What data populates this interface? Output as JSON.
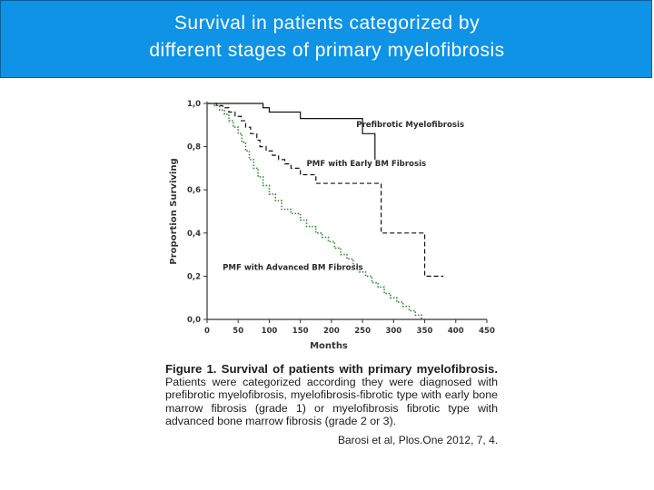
{
  "slide": {
    "title_line1": "Survival in patients categorized by",
    "title_line2": "different stages of primary myelofibrosis",
    "title_color": "#0e93e6"
  },
  "caption": {
    "lead": "Figure 1. Survival of patients with primary myelofibrosis.",
    "body": "Patients were categorized according they were diagnosed with prefibrotic myelofibrosis, myelofibrosis-fibrotic type with early bone marrow fibrosis (grade 1) or myelofibrosis fibrotic type with advanced bone marrow fibrosis (grade 2 or 3)."
  },
  "citation": "Barosi et al, Plos.One 2012, 7, 4.",
  "chart_data": {
    "type": "line",
    "step": true,
    "xlabel": "Months",
    "ylabel": "Proportion Surviving",
    "xlim": [
      0,
      450
    ],
    "ylim": [
      0,
      1
    ],
    "xticks": [
      "0",
      "50",
      "100",
      "150",
      "200",
      "250",
      "300",
      "350",
      "400",
      "450"
    ],
    "yticks": [
      "0,0",
      "0,2",
      "0,4",
      "0,6",
      "0,8",
      "1,0"
    ],
    "grid": false,
    "series": [
      {
        "name": "Prefibrotic Myelofibrosis",
        "style": "solid",
        "color": "#111111",
        "x": [
          0,
          60,
          90,
          100,
          140,
          150,
          250,
          270,
          270
        ],
        "y": [
          1.0,
          1.0,
          0.98,
          0.96,
          0.96,
          0.93,
          0.86,
          0.86,
          0.74
        ]
      },
      {
        "name": "PMF with Early BM Fibrosis",
        "style": "dashed",
        "color": "#111111",
        "x": [
          0,
          15,
          25,
          35,
          45,
          55,
          62,
          70,
          80,
          85,
          95,
          105,
          115,
          125,
          135,
          150,
          175,
          200,
          260,
          280,
          280,
          300,
          330,
          350,
          350,
          380
        ],
        "y": [
          1.0,
          0.99,
          0.98,
          0.96,
          0.94,
          0.92,
          0.89,
          0.86,
          0.83,
          0.8,
          0.78,
          0.76,
          0.74,
          0.72,
          0.7,
          0.67,
          0.63,
          0.63,
          0.63,
          0.63,
          0.4,
          0.4,
          0.4,
          0.4,
          0.2,
          0.2
        ]
      },
      {
        "name": "PMF with Advanced BM Fibrosis",
        "style": "dotted",
        "color": "#2e8b2e",
        "x": [
          0,
          10,
          20,
          28,
          35,
          42,
          50,
          56,
          62,
          68,
          75,
          82,
          90,
          100,
          110,
          120,
          135,
          150,
          160,
          175,
          185,
          195,
          205,
          215,
          225,
          235,
          245,
          255,
          265,
          275,
          285,
          295,
          305,
          315,
          325,
          335,
          345
        ],
        "y": [
          1.0,
          0.99,
          0.97,
          0.95,
          0.92,
          0.89,
          0.86,
          0.82,
          0.78,
          0.74,
          0.7,
          0.66,
          0.62,
          0.58,
          0.55,
          0.51,
          0.49,
          0.46,
          0.43,
          0.4,
          0.38,
          0.36,
          0.33,
          0.3,
          0.28,
          0.25,
          0.22,
          0.2,
          0.17,
          0.15,
          0.12,
          0.1,
          0.08,
          0.06,
          0.04,
          0.02,
          0.0
        ]
      }
    ],
    "annotations": [
      {
        "text": "Prefibrotic Myelofibrosis",
        "x": 240,
        "y": 0.89
      },
      {
        "text": "PMF with Early BM Fibrosis",
        "x": 160,
        "y": 0.71
      },
      {
        "text": "PMF with Advanced BM Fibrosis",
        "x": 25,
        "y": 0.23
      }
    ]
  }
}
